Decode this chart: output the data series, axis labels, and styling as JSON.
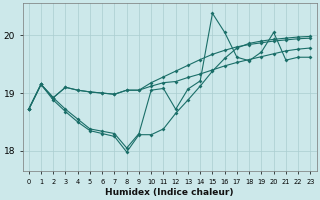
{
  "xlabel": "Humidex (Indice chaleur)",
  "bg_color": "#cce8ea",
  "grid_color": "#aacdd0",
  "line_color": "#1a6e68",
  "xlim": [
    -0.5,
    23.5
  ],
  "ylim": [
    17.65,
    20.55
  ],
  "yticks": [
    18,
    19,
    20
  ],
  "xticks": [
    0,
    1,
    2,
    3,
    4,
    5,
    6,
    7,
    8,
    9,
    10,
    11,
    12,
    13,
    14,
    15,
    16,
    17,
    18,
    19,
    20,
    21,
    22,
    23
  ],
  "line1_x": [
    0,
    1,
    2,
    3,
    4,
    5,
    6,
    7,
    8,
    9,
    10,
    11,
    12,
    13,
    14,
    15,
    16,
    17,
    18,
    19,
    20,
    21,
    22,
    23
  ],
  "line1_y": [
    18.72,
    19.15,
    18.92,
    18.72,
    18.55,
    18.38,
    18.34,
    18.3,
    18.05,
    18.3,
    19.05,
    19.08,
    18.72,
    19.07,
    19.21,
    20.38,
    20.05,
    19.62,
    19.56,
    19.71,
    20.05,
    19.57,
    19.62,
    19.62
  ],
  "line2_x": [
    0,
    1,
    2,
    3,
    4,
    5,
    6,
    7,
    8,
    9,
    10,
    11,
    12,
    13,
    14,
    15,
    16,
    17,
    18,
    19,
    20,
    21,
    22,
    23
  ],
  "line2_y": [
    18.72,
    19.15,
    18.92,
    19.1,
    19.05,
    19.02,
    19.0,
    18.98,
    19.05,
    19.05,
    19.12,
    19.18,
    19.2,
    19.27,
    19.33,
    19.4,
    19.47,
    19.53,
    19.58,
    19.63,
    19.68,
    19.73,
    19.76,
    19.78
  ],
  "line3_x": [
    0,
    1,
    2,
    3,
    4,
    5,
    6,
    7,
    8,
    9,
    10,
    11,
    12,
    13,
    14,
    15,
    16,
    17,
    18,
    19,
    20,
    21,
    22,
    23
  ],
  "line3_y": [
    18.72,
    19.15,
    18.92,
    19.1,
    19.05,
    19.02,
    19.0,
    18.98,
    19.05,
    19.05,
    19.18,
    19.28,
    19.38,
    19.48,
    19.58,
    19.67,
    19.74,
    19.8,
    19.84,
    19.87,
    19.9,
    19.92,
    19.94,
    19.95
  ],
  "line4_x": [
    0,
    1,
    2,
    3,
    4,
    5,
    6,
    7,
    8,
    9,
    10,
    11,
    12,
    13,
    14,
    15,
    16,
    17,
    18,
    19,
    20,
    21,
    22,
    23
  ],
  "line4_y": [
    18.72,
    19.15,
    18.88,
    18.68,
    18.5,
    18.35,
    18.3,
    18.25,
    17.98,
    18.28,
    18.28,
    18.38,
    18.65,
    18.88,
    19.12,
    19.38,
    19.6,
    19.78,
    19.86,
    19.9,
    19.93,
    19.95,
    19.97,
    19.98
  ]
}
